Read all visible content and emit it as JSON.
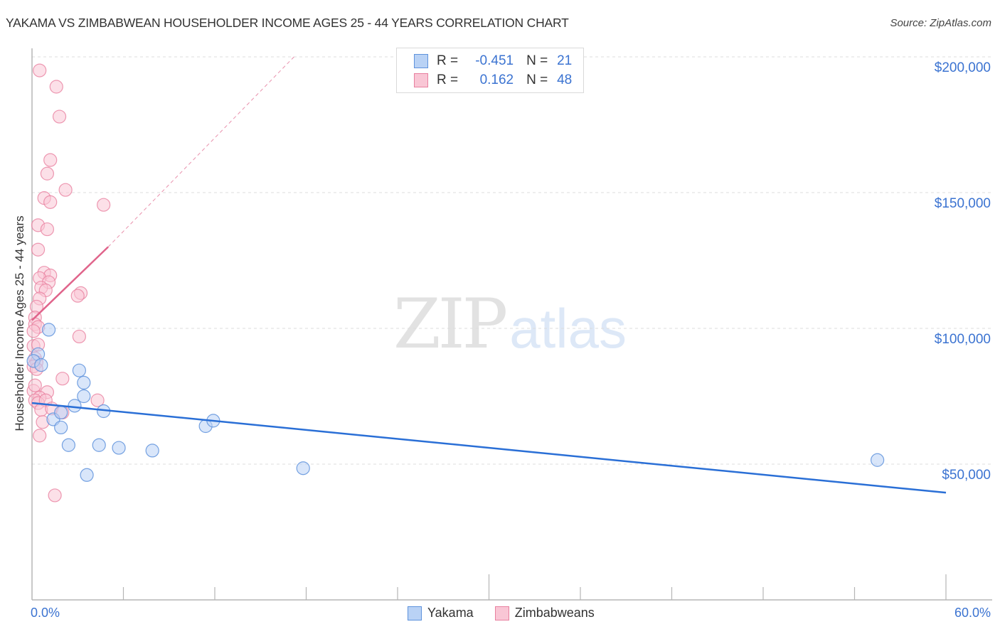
{
  "header": {
    "title": "YAKAMA VS ZIMBABWEAN HOUSEHOLDER INCOME AGES 25 - 44 YEARS CORRELATION CHART",
    "source": "Source: ZipAtlas.com"
  },
  "colors": {
    "yakama_fill": "#b9d2f5",
    "yakama_stroke": "#5e92dc",
    "yakama_line": "#2a6fd6",
    "zimbabwean_fill": "#f9c6d5",
    "zimbabwean_stroke": "#e8809f",
    "zimbabwean_line": "#e0648b",
    "axis_text": "#3b73d1",
    "grid": "#dcdcdc"
  },
  "legend": {
    "rows": [
      {
        "r_label": "R =",
        "r_value": "-0.451",
        "n_label": "N =",
        "n_value": "21"
      },
      {
        "r_label": "R =",
        "r_value": "0.162",
        "n_label": "N =",
        "n_value": "48"
      }
    ],
    "bottom": [
      "Yakama",
      "Zimbabweans"
    ]
  },
  "watermark": {
    "zip": "ZIP",
    "atlas": "atlas"
  },
  "chart_data": {
    "type": "scatter",
    "title": "YAKAMA VS ZIMBABWEAN HOUSEHOLDER INCOME AGES 25 - 44 YEARS CORRELATION CHART",
    "xlabel": "",
    "ylabel": "Householder Income Ages 25 - 44 years",
    "xlim": [
      0,
      60
    ],
    "ylim": [
      0,
      210000
    ],
    "x_tick_labels": [
      "0.0%",
      "60.0%"
    ],
    "y_tick_labels": [
      "$50,000",
      "$100,000",
      "$150,000",
      "$200,000"
    ],
    "y_ticks": [
      50000,
      100000,
      150000,
      200000
    ],
    "grid": true,
    "legend_position": "top-center",
    "series": [
      {
        "name": "Yakama",
        "r": -0.451,
        "n": 21,
        "points": [
          [
            0.4,
            90500
          ],
          [
            0.1,
            88000
          ],
          [
            0.6,
            86500
          ],
          [
            1.1,
            99500
          ],
          [
            3.1,
            84500
          ],
          [
            3.4,
            75000
          ],
          [
            2.8,
            71500
          ],
          [
            1.4,
            66500
          ],
          [
            1.9,
            69000
          ],
          [
            4.7,
            69500
          ],
          [
            1.9,
            63500
          ],
          [
            2.4,
            57000
          ],
          [
            4.4,
            57000
          ],
          [
            5.7,
            56000
          ],
          [
            7.9,
            55000
          ],
          [
            11.4,
            64000
          ],
          [
            11.9,
            66000
          ],
          [
            3.6,
            46000
          ],
          [
            17.8,
            48500
          ],
          [
            55.5,
            51500
          ],
          [
            3.4,
            80000
          ]
        ],
        "trend": {
          "x0": 0,
          "y0": 72500,
          "x1": 60,
          "y1": 39500
        }
      },
      {
        "name": "Zimbabweans",
        "r": 0.162,
        "n": 48,
        "points": [
          [
            0.5,
            195000
          ],
          [
            1.6,
            189000
          ],
          [
            1.8,
            178000
          ],
          [
            1.2,
            162000
          ],
          [
            1.0,
            157000
          ],
          [
            2.2,
            151000
          ],
          [
            0.8,
            148000
          ],
          [
            1.2,
            146500
          ],
          [
            4.7,
            145500
          ],
          [
            0.4,
            138000
          ],
          [
            1.0,
            136500
          ],
          [
            0.4,
            129000
          ],
          [
            0.8,
            120500
          ],
          [
            1.2,
            119500
          ],
          [
            0.5,
            118500
          ],
          [
            1.1,
            117000
          ],
          [
            0.6,
            115000
          ],
          [
            0.9,
            114000
          ],
          [
            3.2,
            113000
          ],
          [
            3.0,
            112000
          ],
          [
            0.5,
            111000
          ],
          [
            0.3,
            108000
          ],
          [
            0.2,
            104000
          ],
          [
            0.2,
            101500
          ],
          [
            0.4,
            100500
          ],
          [
            0.1,
            99000
          ],
          [
            3.1,
            97000
          ],
          [
            0.1,
            93500
          ],
          [
            0.2,
            89000
          ],
          [
            0.3,
            87500
          ],
          [
            0.1,
            86000
          ],
          [
            0.3,
            85000
          ],
          [
            2.0,
            81500
          ],
          [
            0.1,
            77000
          ],
          [
            1.0,
            76500
          ],
          [
            0.5,
            74500
          ],
          [
            0.2,
            73500
          ],
          [
            0.4,
            72500
          ],
          [
            0.9,
            73500
          ],
          [
            4.3,
            73500
          ],
          [
            0.6,
            70000
          ],
          [
            1.3,
            70500
          ],
          [
            2.0,
            69000
          ],
          [
            0.7,
            65500
          ],
          [
            0.5,
            60500
          ],
          [
            1.5,
            38500
          ],
          [
            0.2,
            79000
          ],
          [
            0.4,
            94000
          ]
        ],
        "trend": {
          "x0": 0,
          "y0": 103000,
          "x1": 5,
          "y1": 130000
        },
        "trend_extension": {
          "x0": 5,
          "y0": 130000,
          "x1": 17.2,
          "y1": 200000
        }
      }
    ]
  }
}
